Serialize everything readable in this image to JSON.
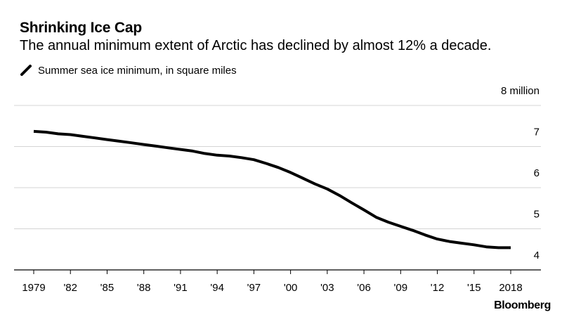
{
  "title": "Shrinking Ice Cap",
  "subtitle": "The annual minimum extent of Arctic has declined by almost 12% a decade.",
  "legend": {
    "label": "Summer sea ice minimum, in square miles",
    "color": "#000000"
  },
  "source": "Bloomberg",
  "chart_data": {
    "type": "line",
    "title": "Shrinking Ice Cap",
    "subtitle": "The annual minimum extent of Arctic has declined by almost 12% a decade.",
    "xlabel": "",
    "ylabel": "8 million",
    "ylim": [
      4,
      8
    ],
    "yticks": [
      4,
      5,
      6,
      7,
      8
    ],
    "ytick_labels": [
      "4",
      "5",
      "6",
      "7",
      "8 million"
    ],
    "xlim": [
      1979,
      2018
    ],
    "xticks": [
      1979,
      1982,
      1985,
      1988,
      1991,
      1994,
      1997,
      2000,
      2003,
      2006,
      2009,
      2012,
      2015,
      2018
    ],
    "xtick_labels": [
      "1979",
      "'82",
      "'85",
      "'88",
      "'91",
      "'94",
      "'97",
      "'00",
      "'03",
      "'06",
      "'09",
      "'12",
      "'15",
      "2018"
    ],
    "grid": true,
    "legend_position": "top-left",
    "series": [
      {
        "name": "Summer sea ice minimum, in square miles",
        "color": "#000000",
        "x": [
          1979,
          1980,
          1981,
          1982,
          1983,
          1984,
          1985,
          1986,
          1987,
          1988,
          1989,
          1990,
          1991,
          1992,
          1993,
          1994,
          1995,
          1996,
          1997,
          1998,
          1999,
          2000,
          2001,
          2002,
          2003,
          2004,
          2005,
          2006,
          2007,
          2008,
          2009,
          2010,
          2011,
          2012,
          2013,
          2014,
          2015,
          2016,
          2017,
          2018
        ],
        "values": [
          7.37,
          7.35,
          7.31,
          7.29,
          7.25,
          7.21,
          7.17,
          7.13,
          7.09,
          7.05,
          7.01,
          6.97,
          6.93,
          6.89,
          6.83,
          6.79,
          6.77,
          6.73,
          6.68,
          6.59,
          6.49,
          6.37,
          6.23,
          6.09,
          5.97,
          5.81,
          5.63,
          5.46,
          5.28,
          5.16,
          5.06,
          4.96,
          4.85,
          4.75,
          4.69,
          4.65,
          4.61,
          4.56,
          4.54,
          4.54
        ]
      }
    ]
  }
}
